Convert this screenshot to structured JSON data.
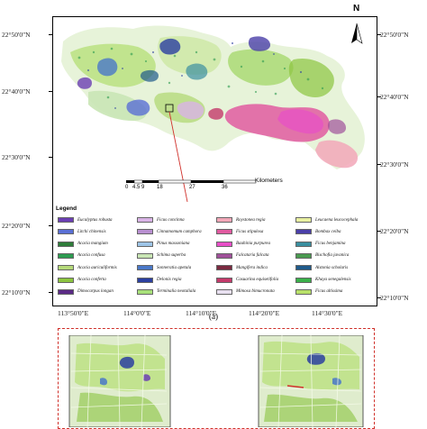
{
  "map": {
    "lat_labels_left": [
      "22°50'0\"N",
      "22°40'0\"N",
      "22°30'0\"N",
      "22°20'0\"N",
      "22°10'0\"N"
    ],
    "lat_labels_right": [
      "22°50'0\"N",
      "22°40'0\"N",
      "22°30'0\"N",
      "22°20'0\"N",
      "22°10'0\"N"
    ],
    "lon_labels": [
      "113°50'0\"E",
      "114°0'0\"E",
      "114°10'0\"E",
      "114°20'0\"E",
      "114°30'0\"E"
    ],
    "north_label": "N",
    "scalebar": {
      "unit": "Kilometers",
      "ticks": [
        "0",
        "4.5",
        "9",
        "18",
        "27",
        "36"
      ]
    },
    "panel_label": "(a)",
    "legend": {
      "title": "Legend",
      "items": [
        {
          "label": "Eucalyptus robusta",
          "color": "#6b3fb3"
        },
        {
          "label": "Litchi chinensis",
          "color": "#5a6fd4"
        },
        {
          "label": "Acacia mangium",
          "color": "#2f7d3a"
        },
        {
          "label": "Acacia confusa",
          "color": "#2d9b50"
        },
        {
          "label": "Acacia auriculiformis",
          "color": "#b5d97a"
        },
        {
          "label": "Acacia conferta",
          "color": "#8bc43f"
        },
        {
          "label": "Dimocarpus longan",
          "color": "#5b2a86"
        },
        {
          "label": "Ficus concinna",
          "color": "#d9b3e6"
        },
        {
          "label": "Cinnamomum camphora",
          "color": "#b88fd0"
        },
        {
          "label": "Pinus massoniana",
          "color": "#9ec5e8"
        },
        {
          "label": "Schima superba",
          "color": "#c9e6b5"
        },
        {
          "label": "Sonneratia apetala",
          "color": "#4a78c8"
        },
        {
          "label": "Delonix regia",
          "color": "#2b3fa0"
        },
        {
          "label": "Terminalia neotaliala",
          "color": "#a8e07a"
        },
        {
          "label": "Roystonea regia",
          "color": "#f2a7b8"
        },
        {
          "label": "Ficus stipulosa",
          "color": "#e05aa0"
        },
        {
          "label": "Bauhinia purpurea",
          "color": "#e84fc8"
        },
        {
          "label": "Falcataria falcata",
          "color": "#a0509a"
        },
        {
          "label": "Mangifera indica",
          "color": "#7a2a40"
        },
        {
          "label": "Casuarina equisetifolia",
          "color": "#c43a6a"
        },
        {
          "label": "Mimosa bimucronata",
          "color": "#e8e0f0"
        },
        {
          "label": "Leucaena leucocephala",
          "color": "#e8f0a0"
        },
        {
          "label": "Bombax ceiba",
          "color": "#4a3fa8"
        },
        {
          "label": "Ficus benjamina",
          "color": "#3a8fa0"
        },
        {
          "label": "Bischofia javanica",
          "color": "#4a9a50"
        },
        {
          "label": "Alstonia scholaris",
          "color": "#1f5a8a"
        },
        {
          "label": "Khaya senegalensis",
          "color": "#3ab04a"
        },
        {
          "label": "Ficus altissima",
          "color": "#b8e06a"
        }
      ]
    }
  }
}
